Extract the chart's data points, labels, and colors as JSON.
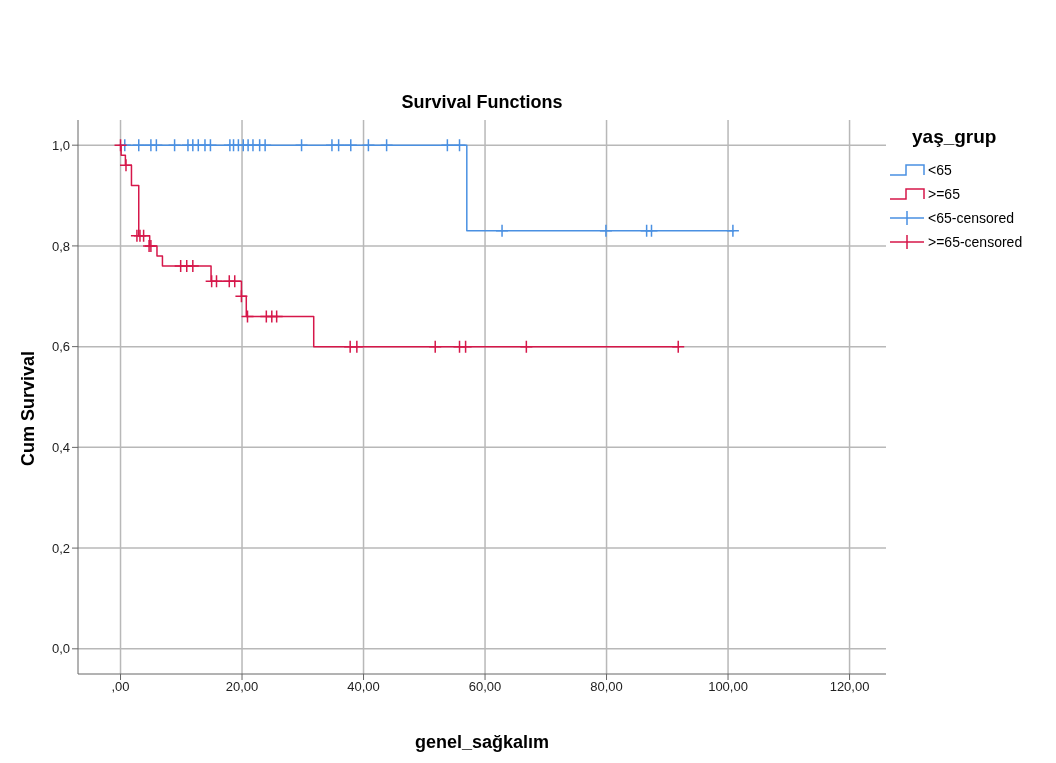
{
  "chart_data": {
    "type": "step",
    "title": "Survival Functions",
    "xlabel": "genel_sağkalım",
    "ylabel": "Cum Survival",
    "legend_title": "yaş_grup",
    "xlim": [
      -7,
      126
    ],
    "ylim": [
      -0.05,
      1.05
    ],
    "xticks": [
      {
        "value": 0,
        "label": ",00"
      },
      {
        "value": 20,
        "label": "20,00"
      },
      {
        "value": 40,
        "label": "40,00"
      },
      {
        "value": 60,
        "label": "60,00"
      },
      {
        "value": 80,
        "label": "80,00"
      },
      {
        "value": 100,
        "label": "100,00"
      },
      {
        "value": 120,
        "label": "120,00"
      }
    ],
    "yticks": [
      {
        "value": 0,
        "label": "0,0"
      },
      {
        "value": 0.2,
        "label": "0,2"
      },
      {
        "value": 0.4,
        "label": "0,4"
      },
      {
        "value": 0.6,
        "label": "0,6"
      },
      {
        "value": 0.8,
        "label": "0,8"
      },
      {
        "value": 1,
        "label": "1,0"
      }
    ],
    "grid": true,
    "legend": "right",
    "series": [
      {
        "name": "<65",
        "color": "#4a90e2",
        "x": [
          0,
          57,
          101
        ],
        "values": [
          1,
          0.83,
          0.83
        ]
      },
      {
        "name": ">=65",
        "color": "#d6174a",
        "x": [
          0,
          0.1,
          0.8,
          1.8,
          3.0,
          4.8,
          6.0,
          6.9,
          14.9,
          19.9,
          20.7,
          31.8,
          92
        ],
        "values": [
          1,
          0.98,
          0.96,
          0.92,
          0.82,
          0.8,
          0.78,
          0.76,
          0.73,
          0.7,
          0.66,
          0.6,
          0.6
        ]
      },
      {
        "name": "<65-censored",
        "type": "scatter",
        "marker": "cross",
        "color": "#4a90e2",
        "x": [
          0.7,
          3.0,
          5.0,
          5.9,
          8.9,
          11.1,
          11.9,
          12.8,
          13.9,
          14.8,
          18.0,
          18.6,
          19.4,
          20.2,
          21.0,
          21.8,
          22.9,
          23.8,
          29.8,
          34.8,
          35.9,
          37.9,
          40.8,
          43.8,
          53.8,
          55.8,
          62.8,
          79.9,
          86.6,
          87.4,
          100.8
        ],
        "values": [
          1,
          1,
          1,
          1,
          1,
          1,
          1,
          1,
          1,
          1,
          1,
          1,
          1,
          1,
          1,
          1,
          1,
          1,
          1,
          1,
          1,
          1,
          1,
          1,
          1,
          1,
          0.83,
          0.83,
          0.83,
          0.83,
          0.83
        ]
      },
      {
        "name": ">=65-censored",
        "type": "scatter",
        "marker": "cross",
        "color": "#d6174a",
        "x": [
          0,
          0.9,
          2.7,
          3.2,
          3.8,
          4.7,
          5.0,
          9.9,
          10.9,
          11.9,
          15.0,
          15.8,
          17.9,
          18.8,
          19.9,
          20.9,
          24.0,
          24.9,
          25.7,
          37.8,
          38.9,
          51.8,
          55.8,
          56.8,
          66.8,
          91.8
        ],
        "values": [
          1,
          0.96,
          0.82,
          0.82,
          0.82,
          0.8,
          0.8,
          0.76,
          0.76,
          0.76,
          0.73,
          0.73,
          0.73,
          0.73,
          0.7,
          0.66,
          0.66,
          0.66,
          0.66,
          0.6,
          0.6,
          0.6,
          0.6,
          0.6,
          0.6,
          0.6
        ]
      }
    ]
  }
}
